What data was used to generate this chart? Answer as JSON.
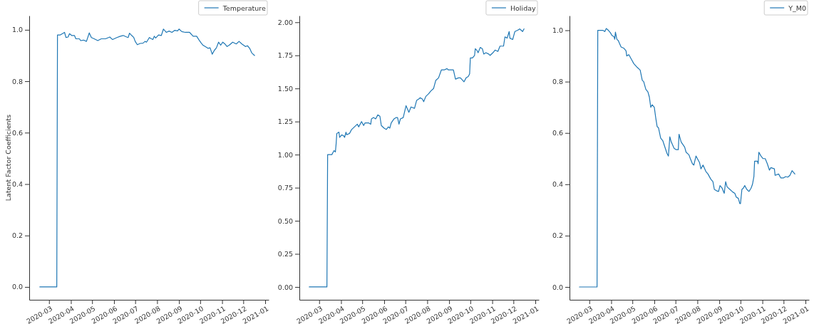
{
  "chart_data": [
    {
      "type": "line",
      "ylabel": "Latent Factor Coefficients",
      "legend": "top right",
      "x": [
        "2020-02-17",
        "2020-03-12",
        "2020-03-13",
        "2020-03-17",
        "2020-03-20",
        "2020-03-23",
        "2020-03-25",
        "2020-03-28",
        "2020-03-30",
        "2020-04-02",
        "2020-04-06",
        "2020-04-08",
        "2020-04-13",
        "2020-04-15",
        "2020-04-19",
        "2020-04-23",
        "2020-04-27",
        "2020-04-30",
        "2020-05-04",
        "2020-05-09",
        "2020-05-14",
        "2020-05-20",
        "2020-05-26",
        "2020-05-30",
        "2020-06-05",
        "2020-06-10",
        "2020-06-14",
        "2020-06-19",
        "2020-06-21",
        "2020-06-23",
        "2020-06-26",
        "2020-06-29",
        "2020-07-01",
        "2020-07-04",
        "2020-07-08",
        "2020-07-12",
        "2020-07-15",
        "2020-07-17",
        "2020-07-21",
        "2020-07-24",
        "2020-07-26",
        "2020-07-28",
        "2020-07-30",
        "2020-08-03",
        "2020-08-07",
        "2020-08-10",
        "2020-08-14",
        "2020-08-18",
        "2020-08-22",
        "2020-08-26",
        "2020-08-30",
        "2020-09-01",
        "2020-09-05",
        "2020-09-10",
        "2020-09-16",
        "2020-09-21",
        "2020-09-26",
        "2020-09-29",
        "2020-10-02",
        "2020-10-05",
        "2020-10-08",
        "2020-10-12",
        "2020-10-15",
        "2020-10-18",
        "2020-10-21",
        "2020-10-24",
        "2020-10-27",
        "2020-10-30",
        "2020-11-02",
        "2020-11-05",
        "2020-11-08",
        "2020-11-11",
        "2020-11-16",
        "2020-11-21",
        "2020-11-25",
        "2020-11-29",
        "2020-12-04",
        "2020-12-07",
        "2020-12-10",
        "2020-12-13",
        "2020-12-17"
      ],
      "series": [
        {
          "name": "Temperature",
          "color": "#1f77b4",
          "values": [
            0,
            0,
            0.98,
            0.98,
            0.985,
            0.99,
            0.97,
            0.972,
            0.985,
            0.978,
            0.978,
            0.965,
            0.965,
            0.958,
            0.96,
            0.955,
            0.988,
            0.97,
            0.965,
            0.958,
            0.965,
            0.965,
            0.972,
            0.962,
            0.97,
            0.975,
            0.978,
            0.972,
            0.97,
            0.987,
            0.978,
            0.97,
            0.955,
            0.942,
            0.947,
            0.948,
            0.955,
            0.952,
            0.97,
            0.965,
            0.962,
            0.975,
            0.968,
            0.98,
            0.978,
            1.003,
            0.99,
            0.995,
            0.99,
            0.998,
            0.996,
            1.003,
            0.993,
            0.99,
            0.99,
            0.975,
            0.975,
            0.962,
            0.95,
            0.94,
            0.935,
            0.928,
            0.93,
            0.905,
            0.92,
            0.93,
            0.952,
            0.94,
            0.952,
            0.945,
            0.935,
            0.94,
            0.952,
            0.945,
            0.955,
            0.945,
            0.935,
            0.938,
            0.928,
            0.91,
            0.9
          ]
        }
      ],
      "xlim": [
        "2020-02-02",
        "2021-01-06"
      ],
      "xticks": [
        "2020-03",
        "2020-04",
        "2020-05",
        "2020-06",
        "2020-07",
        "2020-08",
        "2020-09",
        "2020-10",
        "2020-11",
        "2020-12",
        "2021-01"
      ],
      "ylim": [
        -0.05,
        1.055
      ],
      "yticks": [
        {
          "value": 0,
          "label": "0.0"
        },
        {
          "value": 0.2,
          "label": "0.2"
        },
        {
          "value": 0.4,
          "label": "0.4"
        },
        {
          "value": 0.6,
          "label": "0.6"
        },
        {
          "value": 0.8,
          "label": "0.8"
        },
        {
          "value": 1,
          "label": "1.0"
        }
      ]
    },
    {
      "type": "line",
      "legend": "top right",
      "x": [
        "2020-02-16",
        "2020-03-12",
        "2020-03-13",
        "2020-03-19",
        "2020-03-22",
        "2020-03-24",
        "2020-03-25",
        "2020-03-26",
        "2020-03-29",
        "2020-03-30",
        "2020-04-02",
        "2020-04-05",
        "2020-04-06",
        "2020-04-08",
        "2020-04-09",
        "2020-04-13",
        "2020-04-16",
        "2020-04-20",
        "2020-04-24",
        "2020-04-26",
        "2020-04-30",
        "2020-05-03",
        "2020-05-05",
        "2020-05-10",
        "2020-05-13",
        "2020-05-14",
        "2020-05-17",
        "2020-05-20",
        "2020-05-23",
        "2020-05-26",
        "2020-05-28",
        "2020-06-01",
        "2020-06-04",
        "2020-06-07",
        "2020-06-09",
        "2020-06-11",
        "2020-06-15",
        "2020-06-18",
        "2020-06-20",
        "2020-06-22",
        "2020-06-24",
        "2020-06-28",
        "2020-07-02",
        "2020-07-06",
        "2020-07-09",
        "2020-07-14",
        "2020-07-17",
        "2020-07-20",
        "2020-07-22",
        "2020-07-25",
        "2020-07-27",
        "2020-07-30",
        "2020-08-03",
        "2020-08-06",
        "2020-08-10",
        "2020-08-13",
        "2020-08-17",
        "2020-08-21",
        "2020-08-25",
        "2020-08-29",
        "2020-08-31",
        "2020-09-04",
        "2020-09-07",
        "2020-09-10",
        "2020-09-14",
        "2020-09-17",
        "2020-09-22",
        "2020-09-25",
        "2020-09-28",
        "2020-09-30",
        "2020-10-01",
        "2020-10-04",
        "2020-10-07",
        "2020-10-08",
        "2020-10-10",
        "2020-10-12",
        "2020-10-15",
        "2020-10-18",
        "2020-10-20",
        "2020-10-23",
        "2020-10-27",
        "2020-10-29",
        "2020-11-02",
        "2020-11-05",
        "2020-11-09",
        "2020-11-12",
        "2020-11-17",
        "2020-11-19",
        "2020-11-22",
        "2020-11-25",
        "2020-11-26",
        "2020-11-30",
        "2020-12-03",
        "2020-12-07",
        "2020-12-10",
        "2020-12-12",
        "2020-12-14",
        "2020-12-16"
      ],
      "series": [
        {
          "name": "Holiday",
          "color": "#1f77b4",
          "values": [
            0,
            0,
            1.0,
            1.0,
            1.03,
            1.02,
            1.08,
            1.16,
            1.17,
            1.13,
            1.15,
            1.14,
            1.13,
            1.17,
            1.15,
            1.16,
            1.19,
            1.21,
            1.23,
            1.21,
            1.25,
            1.22,
            1.24,
            1.24,
            1.23,
            1.27,
            1.28,
            1.27,
            1.3,
            1.29,
            1.22,
            1.2,
            1.19,
            1.21,
            1.2,
            1.24,
            1.27,
            1.28,
            1.28,
            1.23,
            1.27,
            1.28,
            1.37,
            1.32,
            1.36,
            1.35,
            1.41,
            1.42,
            1.43,
            1.42,
            1.4,
            1.44,
            1.46,
            1.48,
            1.5,
            1.56,
            1.58,
            1.64,
            1.64,
            1.65,
            1.64,
            1.64,
            1.64,
            1.57,
            1.58,
            1.58,
            1.55,
            1.58,
            1.59,
            1.61,
            1.73,
            1.73,
            1.75,
            1.8,
            1.79,
            1.77,
            1.81,
            1.8,
            1.76,
            1.77,
            1.76,
            1.75,
            1.77,
            1.79,
            1.78,
            1.82,
            1.82,
            1.89,
            1.88,
            1.93,
            1.88,
            1.87,
            1.93,
            1.94,
            1.95,
            1.94,
            1.93,
            1.95
          ]
        }
      ],
      "xlim": [
        "2020-02-02",
        "2021-01-06"
      ],
      "xticks": [
        "2020-03",
        "2020-04",
        "2020-05",
        "2020-06",
        "2020-07",
        "2020-08",
        "2020-09",
        "2020-10",
        "2020-11",
        "2020-12",
        "2021-01"
      ],
      "ylim": [
        -0.097,
        2.05
      ],
      "yticks": [
        {
          "value": 0,
          "label": "0.00"
        },
        {
          "value": 0.25,
          "label": "0.25"
        },
        {
          "value": 0.5,
          "label": "0.50"
        },
        {
          "value": 0.75,
          "label": "0.75"
        },
        {
          "value": 1,
          "label": "1.00"
        },
        {
          "value": 1.25,
          "label": "1.25"
        },
        {
          "value": 1.5,
          "label": "1.50"
        },
        {
          "value": 1.75,
          "label": "1.75"
        },
        {
          "value": 2,
          "label": "2.00"
        }
      ]
    },
    {
      "type": "line",
      "legend": "top right",
      "x": [
        "2020-02-16",
        "2020-03-12",
        "2020-03-13",
        "2020-03-20",
        "2020-03-23",
        "2020-03-25",
        "2020-03-28",
        "2020-03-31",
        "2020-04-02",
        "2020-04-05",
        "2020-04-06",
        "2020-04-07",
        "2020-04-09",
        "2020-04-11",
        "2020-04-15",
        "2020-04-19",
        "2020-04-22",
        "2020-04-23",
        "2020-04-26",
        "2020-04-30",
        "2020-05-03",
        "2020-05-08",
        "2020-05-12",
        "2020-05-15",
        "2020-05-17",
        "2020-05-20",
        "2020-05-23",
        "2020-05-25",
        "2020-05-27",
        "2020-05-29",
        "2020-06-01",
        "2020-06-03",
        "2020-06-05",
        "2020-06-07",
        "2020-06-10",
        "2020-06-13",
        "2020-06-16",
        "2020-06-19",
        "2020-06-21",
        "2020-06-23",
        "2020-06-25",
        "2020-06-29",
        "2020-07-02",
        "2020-07-05",
        "2020-07-06",
        "2020-07-09",
        "2020-07-14",
        "2020-07-16",
        "2020-07-20",
        "2020-07-22",
        "2020-07-25",
        "2020-07-27",
        "2020-07-30",
        "2020-08-01",
        "2020-08-04",
        "2020-08-06",
        "2020-08-09",
        "2020-08-13",
        "2020-08-16",
        "2020-08-20",
        "2020-08-23",
        "2020-08-25",
        "2020-08-28",
        "2020-08-31",
        "2020-09-02",
        "2020-09-05",
        "2020-09-08",
        "2020-09-10",
        "2020-09-12",
        "2020-09-16",
        "2020-09-20",
        "2020-09-23",
        "2020-09-25",
        "2020-09-28",
        "2020-09-30",
        "2020-10-01",
        "2020-10-03",
        "2020-10-05",
        "2020-10-07",
        "2020-10-10",
        "2020-10-13",
        "2020-10-16",
        "2020-10-18",
        "2020-10-20",
        "2020-10-21",
        "2020-10-25",
        "2020-10-26",
        "2020-10-27",
        "2020-10-30",
        "2020-11-02",
        "2020-11-05",
        "2020-11-08",
        "2020-11-11",
        "2020-11-13",
        "2020-11-18",
        "2020-11-19",
        "2020-11-24",
        "2020-11-27",
        "2020-12-01",
        "2020-12-04",
        "2020-12-07",
        "2020-12-10",
        "2020-12-13",
        "2020-12-17"
      ],
      "series": [
        {
          "name": "Y_M0",
          "color": "#1f77b4",
          "values": [
            0,
            0,
            1.0,
            1.0,
            0.995,
            1.007,
            1.0,
            0.99,
            0.98,
            0.975,
            0.965,
            0.993,
            0.965,
            0.96,
            0.935,
            0.93,
            0.92,
            0.9,
            0.905,
            0.885,
            0.87,
            0.855,
            0.845,
            0.805,
            0.8,
            0.77,
            0.76,
            0.74,
            0.7,
            0.71,
            0.7,
            0.66,
            0.625,
            0.62,
            0.58,
            0.57,
            0.545,
            0.52,
            0.51,
            0.585,
            0.565,
            0.54,
            0.535,
            0.535,
            0.595,
            0.565,
            0.545,
            0.525,
            0.515,
            0.5,
            0.48,
            0.475,
            0.51,
            0.5,
            0.485,
            0.46,
            0.475,
            0.45,
            0.44,
            0.42,
            0.41,
            0.38,
            0.375,
            0.372,
            0.395,
            0.385,
            0.365,
            0.41,
            0.39,
            0.38,
            0.37,
            0.365,
            0.35,
            0.345,
            0.325,
            0.325,
            0.38,
            0.385,
            0.395,
            0.38,
            0.372,
            0.385,
            0.4,
            0.43,
            0.49,
            0.49,
            0.48,
            0.525,
            0.51,
            0.5,
            0.5,
            0.48,
            0.455,
            0.465,
            0.46,
            0.435,
            0.44,
            0.425,
            0.425,
            0.43,
            0.428,
            0.435,
            0.453,
            0.44
          ]
        }
      ],
      "xlim": [
        "2020-02-02",
        "2021-01-06"
      ],
      "xticks": [
        "2020-03",
        "2020-04",
        "2020-05",
        "2020-06",
        "2020-07",
        "2020-08",
        "2020-09",
        "2020-10",
        "2020-11",
        "2020-12",
        "2021-01"
      ],
      "ylim": [
        -0.05,
        1.057
      ],
      "yticks": [
        {
          "value": 0,
          "label": "0.0"
        },
        {
          "value": 0.2,
          "label": "0.2"
        },
        {
          "value": 0.4,
          "label": "0.4"
        },
        {
          "value": 0.6,
          "label": "0.6"
        },
        {
          "value": 0.8,
          "label": "0.8"
        },
        {
          "value": 1,
          "label": "1.0"
        }
      ]
    }
  ]
}
